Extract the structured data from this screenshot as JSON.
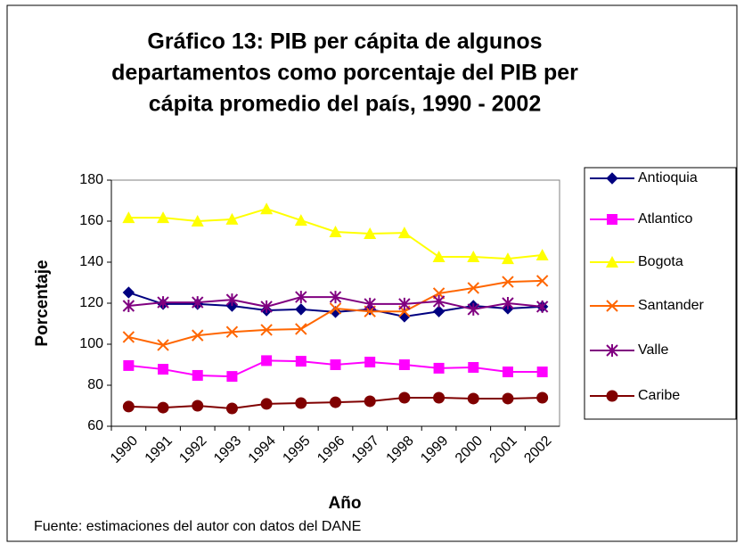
{
  "chart_data": {
    "type": "line",
    "title": [
      "Gráfico 13: PIB per cápita de algunos",
      "departamentos como porcentaje del PIB per",
      "cápita promedio del país, 1990 - 2002"
    ],
    "x_label": "Año",
    "y_label": "Porcentaje",
    "source": "Fuente: estimaciones del autor con datos del DANE",
    "categories": [
      "1990",
      "1991",
      "1992",
      "1993",
      "1994",
      "1995",
      "1996",
      "1997",
      "1998",
      "1999",
      "2000",
      "2001",
      "2002"
    ],
    "ylim": [
      60,
      180
    ],
    "yticks": [
      60,
      80,
      100,
      120,
      140,
      160,
      180
    ],
    "grid": false,
    "legend": "right",
    "series": [
      {
        "name": "Antioquia",
        "color": "#000080",
        "marker": "diamond",
        "values": [
          125.2,
          119.6,
          119.6,
          118.7,
          116.5,
          117,
          115.7,
          117,
          113.5,
          116,
          118.7,
          117.4,
          118.3
        ]
      },
      {
        "name": "Atlantico",
        "color": "#ff00ff",
        "marker": "square",
        "values": [
          89.6,
          87.8,
          84.8,
          84.3,
          92,
          91.7,
          90,
          91.3,
          90,
          88.3,
          88.7,
          86.5,
          86.5
        ]
      },
      {
        "name": "Bogota",
        "color": "#ffff00",
        "marker": "triangle",
        "values": [
          161.7,
          161.7,
          160,
          160.9,
          166,
          160.4,
          154.8,
          153.9,
          154.3,
          142.6,
          142.6,
          141.7,
          143.5
        ]
      },
      {
        "name": "Santander",
        "color": "#ff6600",
        "marker": "x",
        "values": [
          103.5,
          99.6,
          104.3,
          106,
          107,
          107.4,
          117.4,
          116,
          116,
          124.8,
          127.4,
          130.4,
          130.9
        ]
      },
      {
        "name": "Valle",
        "color": "#800080",
        "marker": "star",
        "values": [
          118.7,
          120.4,
          120.4,
          121.7,
          118.3,
          123,
          123,
          119.6,
          119.6,
          120.9,
          117,
          120,
          118.3
        ]
      },
      {
        "name": "Caribe",
        "color": "#800000",
        "marker": "circle",
        "values": [
          69.6,
          69.1,
          70,
          68.7,
          70.9,
          71.3,
          71.7,
          72.2,
          73.9,
          73.9,
          73.5,
          73.5,
          73.9
        ]
      }
    ]
  }
}
